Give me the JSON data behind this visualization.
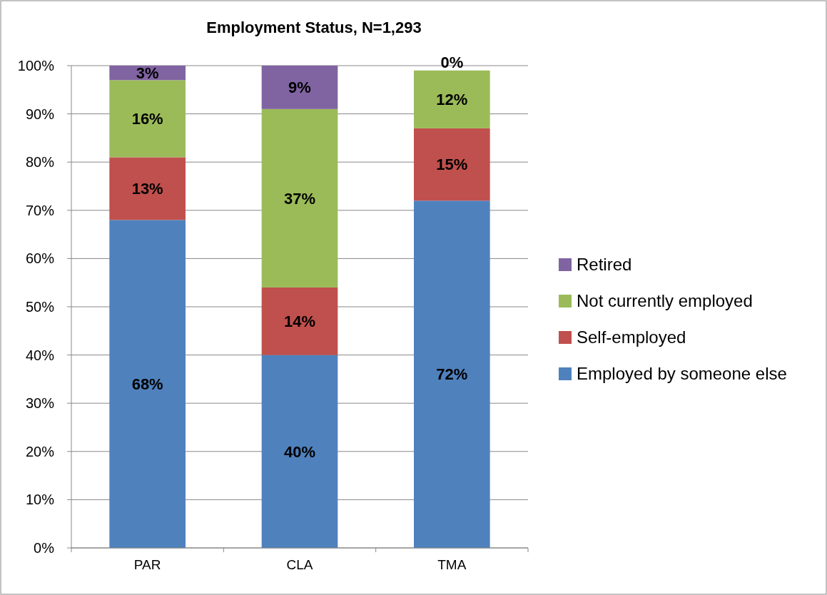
{
  "chart_data": {
    "type": "bar",
    "title": "Employment Status, N=1,293",
    "categories": [
      "PAR",
      "CLA",
      "TMA"
    ],
    "stacked": true,
    "series": [
      {
        "name": "Employed by someone else",
        "color": "#4f81bd",
        "values": [
          68,
          40,
          72
        ],
        "value_labels": [
          "68%",
          "40%",
          "72%"
        ]
      },
      {
        "name": "Self-employed",
        "color": "#c0504d",
        "values": [
          13,
          14,
          15
        ],
        "value_labels": [
          "13%",
          "14%",
          "15%"
        ]
      },
      {
        "name": "Not currently employed",
        "color": "#9bbb59",
        "values": [
          16,
          37,
          12
        ],
        "value_labels": [
          "16%",
          "37%",
          "12%"
        ]
      },
      {
        "name": "Retired",
        "color": "#8064a2",
        "values": [
          3,
          9,
          0
        ],
        "value_labels": [
          "3%",
          "9%",
          "0%"
        ]
      }
    ],
    "ylim": [
      0,
      100
    ],
    "yticks": [
      {
        "value": 0,
        "label": "0%"
      },
      {
        "value": 10,
        "label": "10%"
      },
      {
        "value": 20,
        "label": "20%"
      },
      {
        "value": 30,
        "label": "30%"
      },
      {
        "value": 40,
        "label": "40%"
      },
      {
        "value": 50,
        "label": "50%"
      },
      {
        "value": 60,
        "label": "60%"
      },
      {
        "value": 70,
        "label": "70%"
      },
      {
        "value": 80,
        "label": "80%"
      },
      {
        "value": 90,
        "label": "90%"
      },
      {
        "value": 100,
        "label": "100%"
      }
    ],
    "grid": "y",
    "legend": "right"
  }
}
